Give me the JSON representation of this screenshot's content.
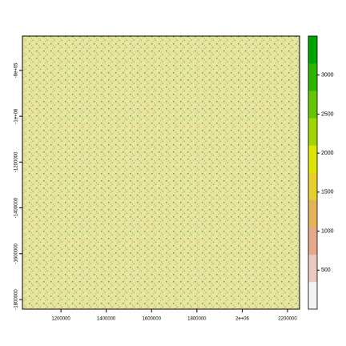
{
  "chart_data": {
    "type": "raster",
    "xlim": [
      1030000,
      2253000
    ],
    "xticks": [
      1200000,
      1400000,
      1600000,
      1800000,
      {
        "value": 2000000,
        "label": "2e+06"
      },
      2200000
    ],
    "ylim": [
      -1842000,
      -650000
    ],
    "yticks": [
      {
        "value": -800000,
        "label": "-8e+05"
      },
      {
        "value": -1000000,
        "label": "-1e+06"
      },
      -1200000,
      -1400000,
      -1600000,
      -1800000
    ],
    "zlim": [
      0,
      3500
    ],
    "zticks": [
      500,
      1000,
      1500,
      2000,
      2500,
      3000
    ],
    "colors": [
      "#f2f2f2",
      "#ecc8be",
      "#e6a88a",
      "#e3b35a",
      "#e6cf2a",
      "#dde600",
      "#9fd600",
      "#63c600",
      "#2fb500",
      "#00a600"
    ]
  }
}
